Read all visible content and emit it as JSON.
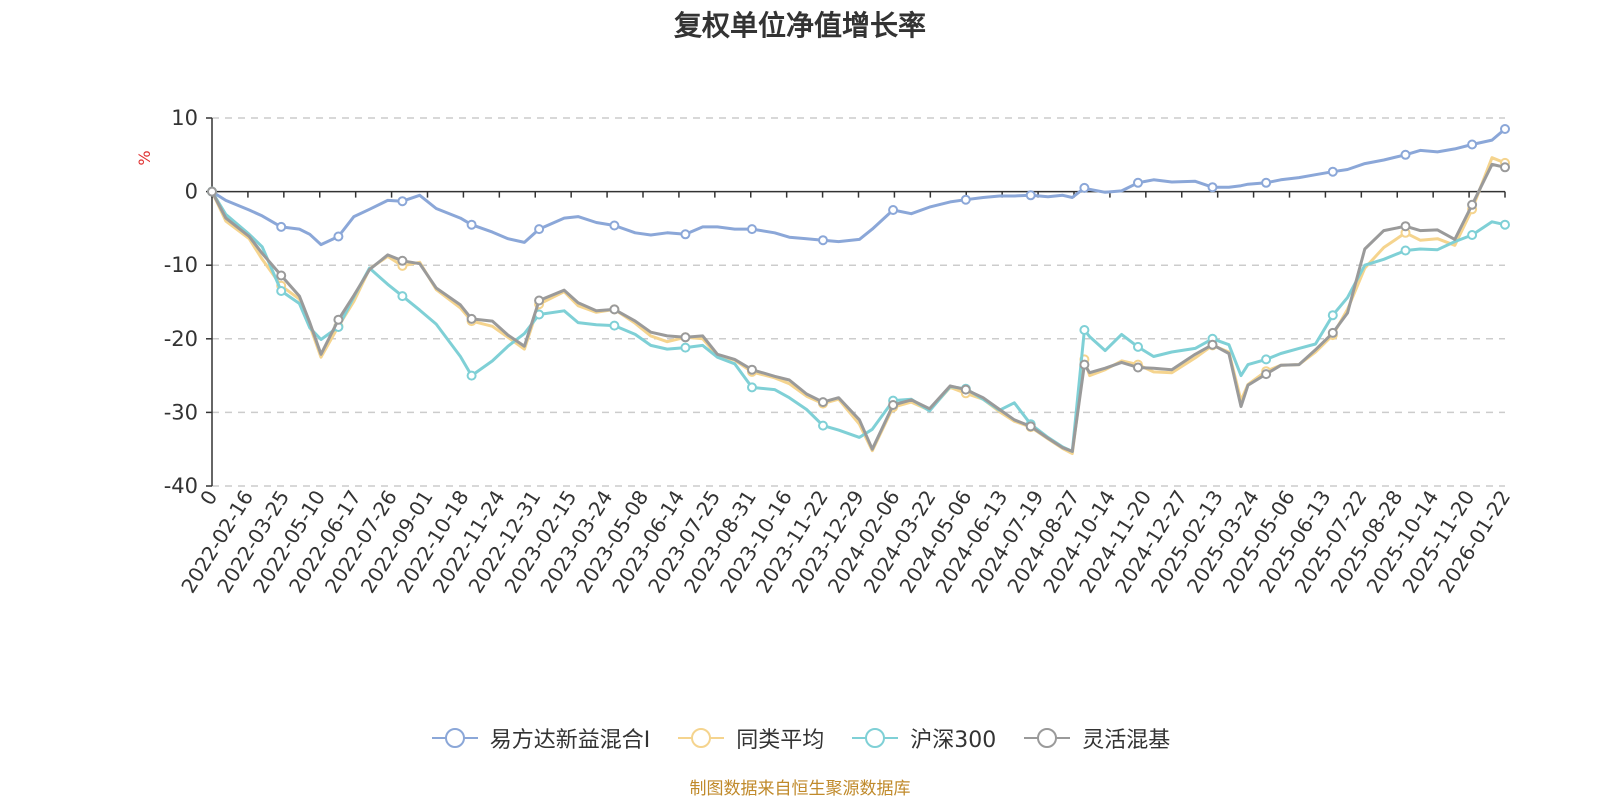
{
  "chart_data": {
    "type": "line",
    "title": "复权单位净值增长率",
    "ylabel": "%",
    "ylim": [
      -40,
      10
    ],
    "yticks": [
      10,
      0,
      -10,
      -20,
      -30,
      -40
    ],
    "grid": true,
    "legend_position": "bottom",
    "x_tick_labels": [
      "0",
      "2022-02-16",
      "2022-03-25",
      "2022-05-10",
      "2022-06-17",
      "2022-07-26",
      "2022-09-01",
      "2022-10-18",
      "2022-11-24",
      "2022-12-31",
      "2023-02-15",
      "2023-03-24",
      "2023-05-08",
      "2023-06-14",
      "2023-07-25",
      "2023-08-31",
      "2023-10-16",
      "2023-11-22",
      "2023-12-29",
      "2024-02-06",
      "2024-03-22",
      "2024-05-06",
      "2024-06-13",
      "2024-07-19",
      "2024-08-27",
      "2024-10-14",
      "2024-11-20",
      "2024-12-27",
      "2025-02-13",
      "2025-03-24",
      "2025-05-06",
      "2025-06-13",
      "2025-07-22",
      "2025-08-28",
      "2025-10-14",
      "2025-11-20",
      "2026-01-22"
    ],
    "x": [
      "2022-01-04",
      "2022-01-20",
      "2022-02-16",
      "2022-03-03",
      "2022-03-25",
      "2022-04-15",
      "2022-04-27",
      "2022-05-10",
      "2022-05-30",
      "2022-06-17",
      "2022-07-05",
      "2022-07-26",
      "2022-08-12",
      "2022-09-01",
      "2022-09-20",
      "2022-10-18",
      "2022-10-31",
      "2022-11-24",
      "2022-12-12",
      "2022-12-31",
      "2023-01-17",
      "2023-02-15",
      "2023-03-03",
      "2023-03-24",
      "2023-04-14",
      "2023-05-08",
      "2023-05-26",
      "2023-06-14",
      "2023-07-05",
      "2023-07-25",
      "2023-08-11",
      "2023-08-31",
      "2023-09-20",
      "2023-10-16",
      "2023-11-02",
      "2023-11-22",
      "2023-12-11",
      "2023-12-29",
      "2024-01-22",
      "2024-02-06",
      "2024-03-01",
      "2024-03-22",
      "2024-04-12",
      "2024-05-06",
      "2024-05-24",
      "2024-06-13",
      "2024-07-02",
      "2024-07-19",
      "2024-08-07",
      "2024-08-27",
      "2024-09-13",
      "2024-09-24",
      "2024-10-08",
      "2024-10-14",
      "2024-11-01",
      "2024-11-20",
      "2024-12-09",
      "2024-12-27",
      "2025-01-17",
      "2025-02-13",
      "2025-03-05",
      "2025-03-24",
      "2025-04-07",
      "2025-04-15",
      "2025-05-06",
      "2025-05-23",
      "2025-06-13",
      "2025-07-02",
      "2025-07-22",
      "2025-08-08",
      "2025-08-28",
      "2025-09-19",
      "2025-10-14",
      "2025-10-31",
      "2025-11-20",
      "2025-12-10",
      "2025-12-30",
      "2026-01-22",
      "2026-02-06"
    ],
    "series": [
      {
        "name": "易方达新益混合I",
        "color": "#8ba7d8",
        "values": [
          0,
          -1.2,
          -2.5,
          -3.3,
          -4.8,
          -5.1,
          -5.8,
          -7.2,
          -6.1,
          -3.4,
          -2.4,
          -1.2,
          -1.3,
          -0.5,
          -2.3,
          -3.6,
          -4.5,
          -5.5,
          -6.4,
          -6.9,
          -5.1,
          -3.6,
          -3.4,
          -4.2,
          -4.6,
          -5.6,
          -5.9,
          -5.6,
          -5.8,
          -4.8,
          -4.8,
          -5.1,
          -5.1,
          -5.6,
          -6.2,
          -6.4,
          -6.6,
          -6.8,
          -6.5,
          -5.1,
          -2.5,
          -3.0,
          -2.1,
          -1.4,
          -1.1,
          -0.8,
          -0.6,
          -0.6,
          -0.5,
          -0.7,
          -0.5,
          -0.8,
          0.5,
          0.3,
          -0.1,
          0.1,
          1.2,
          1.6,
          1.3,
          1.4,
          0.6,
          0.6,
          0.8,
          1.0,
          1.2,
          1.6,
          1.9,
          2.3,
          2.7,
          3.0,
          3.8,
          4.3,
          5.0,
          5.6,
          5.4,
          5.8,
          6.4,
          7.0,
          8.5
        ]
      },
      {
        "name": "同类平均",
        "color": "#f5d48e",
        "values": [
          0,
          -4.0,
          -6.4,
          -9.2,
          -12.8,
          -14.6,
          -18.2,
          -22.5,
          -18.3,
          -14.9,
          -10.5,
          -8.8,
          -10.1,
          -9.6,
          -13.3,
          -15.8,
          -17.6,
          -18.3,
          -19.8,
          -21.4,
          -15.3,
          -13.6,
          -15.5,
          -16.4,
          -16.0,
          -17.9,
          -19.6,
          -20.4,
          -19.8,
          -20.0,
          -22.3,
          -22.9,
          -24.5,
          -25.3,
          -26.1,
          -27.8,
          -28.8,
          -28.2,
          -31.6,
          -35.2,
          -29.3,
          -28.6,
          -29.7,
          -26.6,
          -27.4,
          -28.2,
          -29.9,
          -31.2,
          -32.0,
          -33.6,
          -34.9,
          -35.6,
          -22.8,
          -25.0,
          -24.2,
          -23.0,
          -23.5,
          -24.5,
          -24.6,
          -22.6,
          -20.9,
          -21.8,
          -28.4,
          -26.2,
          -24.4,
          -23.6,
          -23.5,
          -21.8,
          -19.5,
          -16.0,
          -10.4,
          -7.6,
          -5.6,
          -6.6,
          -6.4,
          -7.3,
          -2.4,
          4.6,
          3.9
        ]
      },
      {
        "name": "沪深300",
        "color": "#7fd0d6",
        "values": [
          0,
          -3.1,
          -5.8,
          -7.5,
          -13.5,
          -15.2,
          -18.5,
          -20.1,
          -18.4,
          -14.3,
          -10.4,
          -12.6,
          -14.2,
          -16.1,
          -18.0,
          -22.4,
          -25.0,
          -23.0,
          -21.0,
          -19.3,
          -16.7,
          -16.2,
          -17.8,
          -18.1,
          -18.2,
          -19.4,
          -20.9,
          -21.4,
          -21.2,
          -20.9,
          -22.5,
          -23.4,
          -26.6,
          -26.9,
          -28.0,
          -29.6,
          -31.8,
          -32.4,
          -33.4,
          -32.3,
          -28.4,
          -28.2,
          -29.8,
          -26.5,
          -26.8,
          -28.2,
          -29.7,
          -28.7,
          -31.6,
          -33.4,
          -34.7,
          -35.3,
          -18.8,
          -19.7,
          -21.6,
          -19.4,
          -21.1,
          -22.4,
          -21.8,
          -21.3,
          -20.0,
          -20.8,
          -25.0,
          -23.5,
          -22.8,
          -22.0,
          -21.3,
          -20.7,
          -16.8,
          -14.4,
          -10.0,
          -9.2,
          -8.0,
          -7.8,
          -7.9,
          -6.8,
          -5.9,
          -4.1,
          -4.5
        ]
      },
      {
        "name": "灵活混基",
        "color": "#9a9a9a",
        "values": [
          0,
          -3.6,
          -6.1,
          -8.4,
          -11.4,
          -14.2,
          -17.8,
          -22.1,
          -17.4,
          -14.1,
          -10.6,
          -8.6,
          -9.4,
          -9.8,
          -13.1,
          -15.4,
          -17.3,
          -17.6,
          -19.5,
          -21.0,
          -14.8,
          -13.4,
          -15.1,
          -16.2,
          -16.0,
          -17.6,
          -19.1,
          -19.6,
          -19.8,
          -19.6,
          -22.1,
          -22.8,
          -24.2,
          -25.1,
          -25.6,
          -27.5,
          -28.6,
          -28.0,
          -31.0,
          -35.0,
          -29.0,
          -28.3,
          -29.5,
          -26.4,
          -26.9,
          -28.0,
          -29.6,
          -31.0,
          -31.9,
          -33.5,
          -34.8,
          -35.3,
          -23.5,
          -24.6,
          -24.0,
          -23.2,
          -23.9,
          -24.0,
          -24.2,
          -22.1,
          -20.8,
          -22.0,
          -29.2,
          -26.3,
          -24.8,
          -23.6,
          -23.5,
          -21.5,
          -19.2,
          -16.5,
          -7.8,
          -5.3,
          -4.7,
          -5.3,
          -5.2,
          -6.5,
          -1.8,
          3.7,
          3.3
        ]
      }
    ]
  },
  "source_note": "制图数据来自恒生聚源数据库"
}
